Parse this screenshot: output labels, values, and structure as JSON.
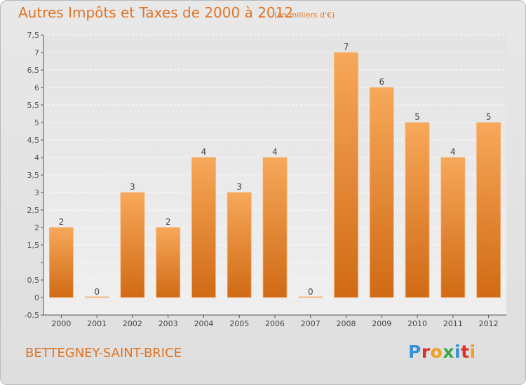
{
  "header": {
    "title": "Autres Impôts et Taxes de 2000 à 2012",
    "subtitle": "(en milliers d'€)"
  },
  "footer": {
    "commune": "BETTEGNEY-SAINT-BRICE",
    "logo_letters": [
      {
        "char": "P",
        "color": "#3a8fd8"
      },
      {
        "char": "r",
        "color": "#e0302a"
      },
      {
        "char": "o",
        "color": "#f0a020"
      },
      {
        "char": "x",
        "color": "#3aa845"
      },
      {
        "char": "i",
        "color": "#3a8fd8"
      },
      {
        "char": "t",
        "color": "#e0302a"
      },
      {
        "char": "i",
        "color": "#f0a020"
      }
    ]
  },
  "colors": {
    "bar_light": "#f7a85a",
    "bar_dark": "#d06a15",
    "accent": "#e07525",
    "axis": "#555555"
  },
  "chart_data": {
    "type": "bar",
    "categories": [
      "2000",
      "2001",
      "2002",
      "2003",
      "2004",
      "2005",
      "2006",
      "2007",
      "2008",
      "2009",
      "2010",
      "2011",
      "2012"
    ],
    "values": [
      2,
      0,
      3,
      2,
      4,
      3,
      4,
      0,
      7,
      6,
      5,
      4,
      5
    ],
    "data_labels": [
      "2",
      "0",
      "3",
      "2",
      "4",
      "3",
      "4",
      "0",
      "7",
      "6",
      "5",
      "4",
      "5"
    ],
    "ylim": [
      -0.5,
      7.5
    ],
    "yticks": [
      "-0,5",
      "0",
      "0,5",
      "",
      "1,5",
      "2",
      "2,5",
      "3",
      "3,5",
      "4",
      "4,5",
      "5",
      "5,5",
      "6",
      "6,5",
      "7",
      "7,5"
    ],
    "ytick_values": [
      -0.5,
      0,
      0.5,
      1,
      1.5,
      2,
      2.5,
      3,
      3.5,
      4,
      4.5,
      5,
      5.5,
      6,
      6.5,
      7,
      7.5
    ],
    "grid": "horizontal dashed",
    "legend": "none"
  }
}
